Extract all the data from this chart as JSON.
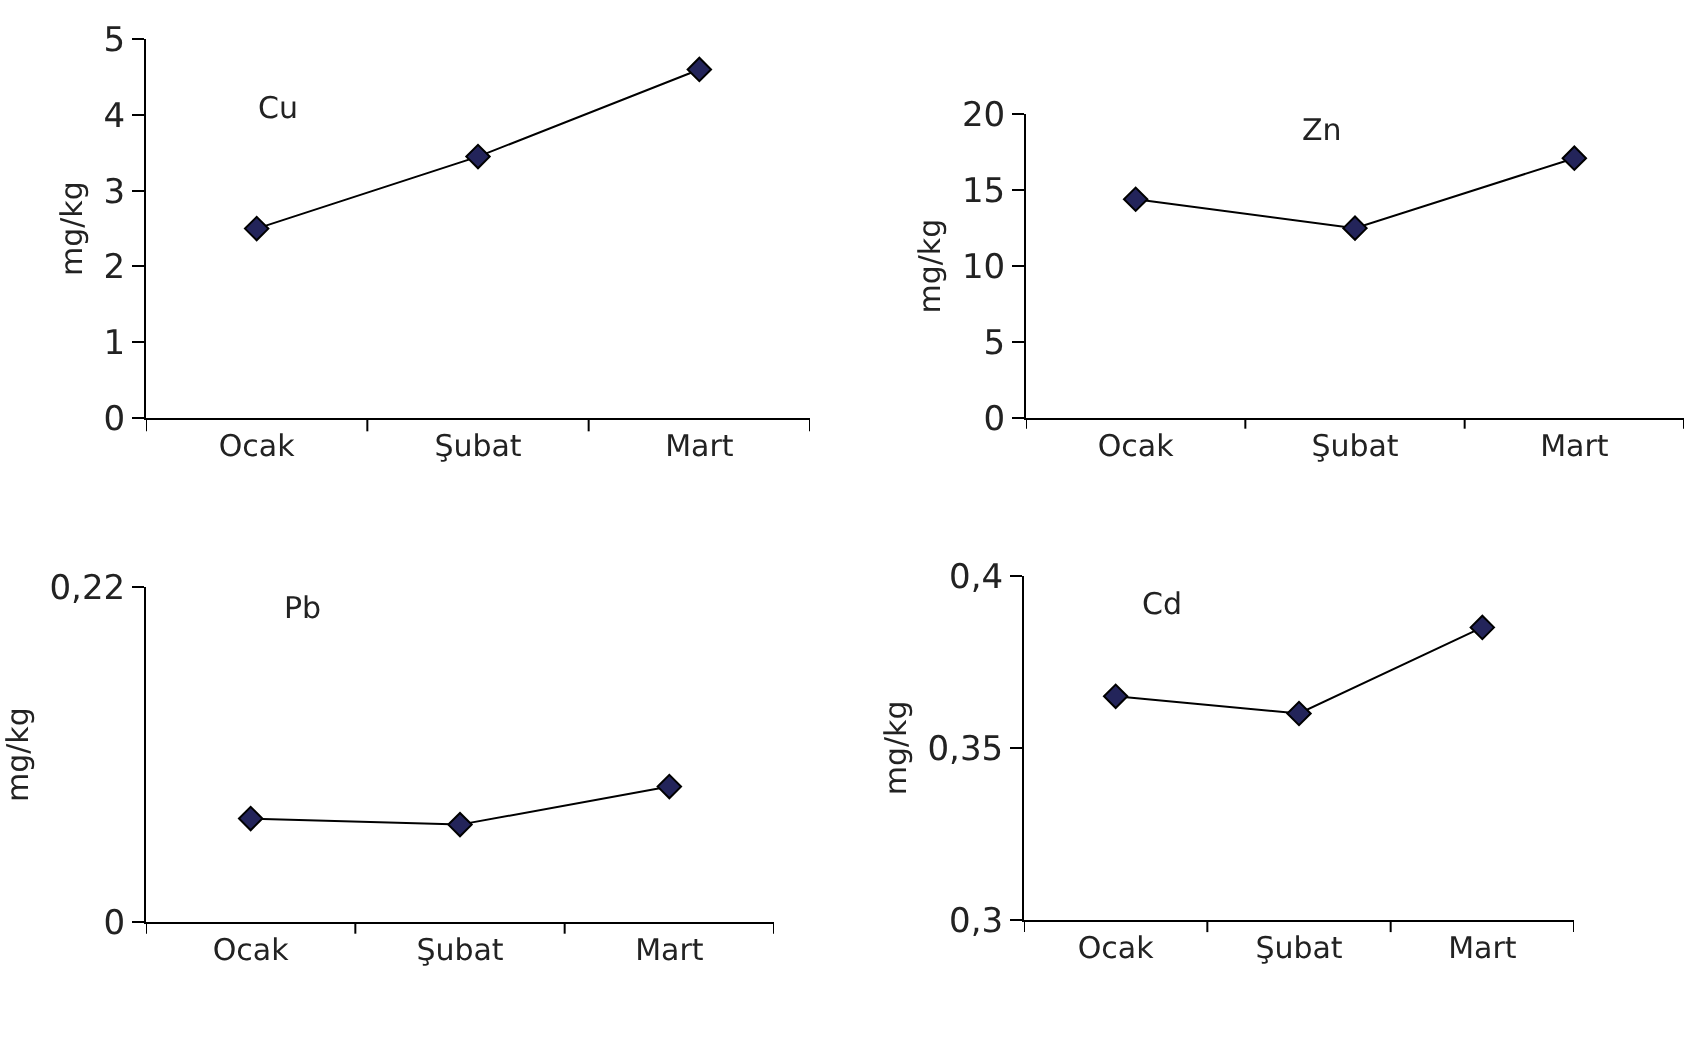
{
  "chart_data": [
    {
      "type": "line",
      "title": "Cu",
      "ylabel": "mg/kg",
      "categories": [
        "Ocak",
        "Şubat",
        "Mart"
      ],
      "series": [
        {
          "color": "#23245a",
          "values": [
            2.5,
            3.45,
            4.6
          ]
        }
      ],
      "ylim": [
        0,
        5
      ],
      "yticks": [
        0,
        1,
        2,
        3,
        4,
        5
      ],
      "marker": "diamond",
      "line_style": "solid"
    },
    {
      "type": "line",
      "title": "Zn",
      "ylabel": "mg/kg",
      "categories": [
        "Ocak",
        "Şubat",
        "Mart"
      ],
      "series": [
        {
          "color": "#23245a",
          "values": [
            14.4,
            12.5,
            17.1
          ]
        }
      ],
      "ylim": [
        0,
        20
      ],
      "yticks": [
        0,
        5,
        10,
        15,
        20
      ],
      "marker": "diamond",
      "line_style": "solid"
    },
    {
      "type": "line",
      "title": "Pb",
      "ylabel": "mg/kg",
      "categories": [
        "Ocak",
        "Şubat",
        "Mart"
      ],
      "series": [
        {
          "color": "#23245a",
          "values": [
            0.068,
            0.064,
            0.089
          ]
        }
      ],
      "ylim": [
        0,
        0.22
      ],
      "yticks": [
        0,
        {
          "value": 0.22,
          "label": "0,22"
        }
      ],
      "marker": "diamond",
      "line_style": "solid"
    },
    {
      "type": "line",
      "title": "Cd",
      "ylabel": "mg/kg",
      "categories": [
        "Ocak",
        "Şubat",
        "Mart"
      ],
      "series": [
        {
          "color": "#23245a",
          "values": [
            0.365,
            0.36,
            0.385
          ]
        }
      ],
      "ylim": [
        0.3,
        0.4
      ],
      "yticks": [
        {
          "value": 0.3,
          "label": "0,3"
        },
        {
          "value": 0.35,
          "label": "0,35"
        },
        {
          "value": 0.4,
          "label": "0,4"
        }
      ],
      "marker": "diamond",
      "line_style": "solid"
    }
  ]
}
